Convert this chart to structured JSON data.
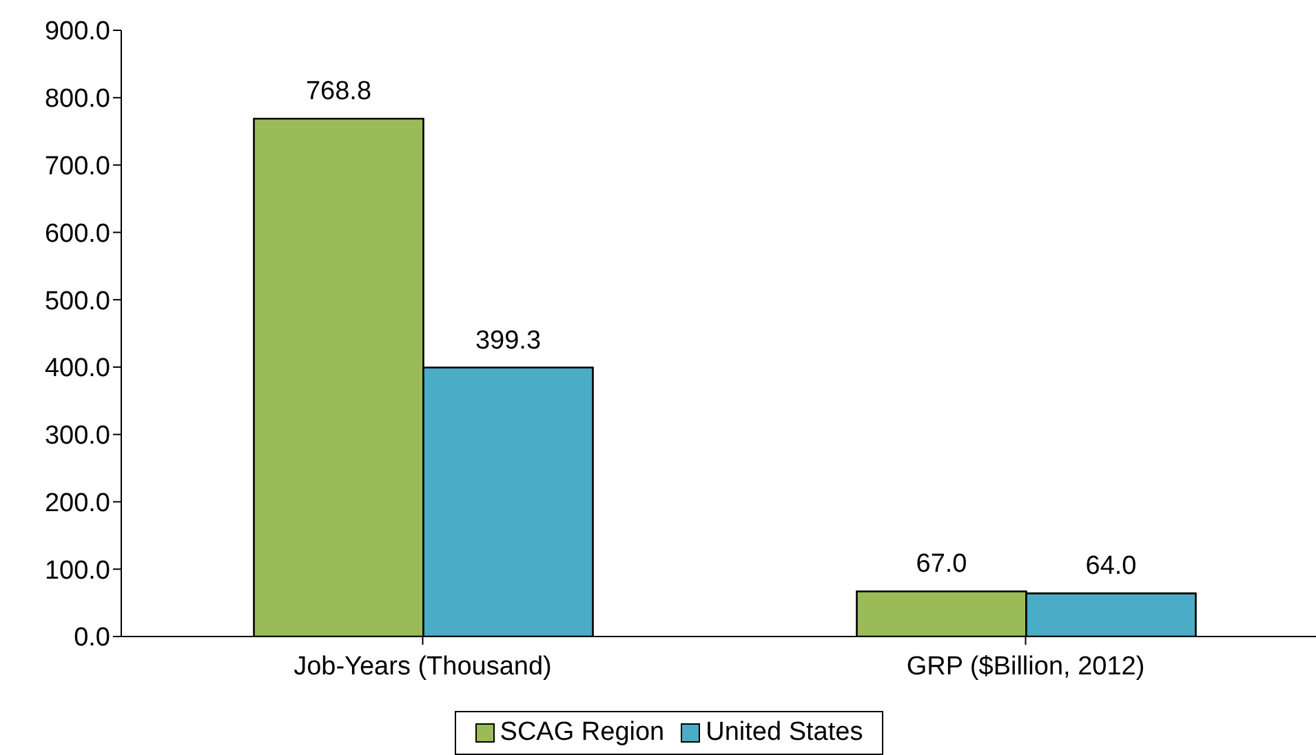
{
  "chart_data": {
    "type": "bar",
    "categories": [
      "Job-Years (Thousand)",
      "GRP ($Billion, 2012)"
    ],
    "series": [
      {
        "name": "SCAG Region",
        "color": "#9bbb59",
        "values": [
          768.8,
          67.0
        ],
        "value_labels": [
          "768.8",
          "67.0"
        ]
      },
      {
        "name": "United States",
        "color": "#4bacc6",
        "values": [
          399.3,
          64.0
        ],
        "value_labels": [
          "399.3",
          "64.0"
        ]
      }
    ],
    "ylim": [
      0,
      900
    ],
    "yticks": [
      {
        "value": 0,
        "label": "0.0"
      },
      {
        "value": 100,
        "label": "100.0"
      },
      {
        "value": 200,
        "label": "200.0"
      },
      {
        "value": 300,
        "label": "300.0"
      },
      {
        "value": 400,
        "label": "400.0"
      },
      {
        "value": 500,
        "label": "500.0"
      },
      {
        "value": 600,
        "label": "600.0"
      },
      {
        "value": 700,
        "label": "700.0"
      },
      {
        "value": 800,
        "label": "800.0"
      },
      {
        "value": 900,
        "label": "900.0"
      }
    ],
    "grid": false,
    "legend": "bottom"
  }
}
